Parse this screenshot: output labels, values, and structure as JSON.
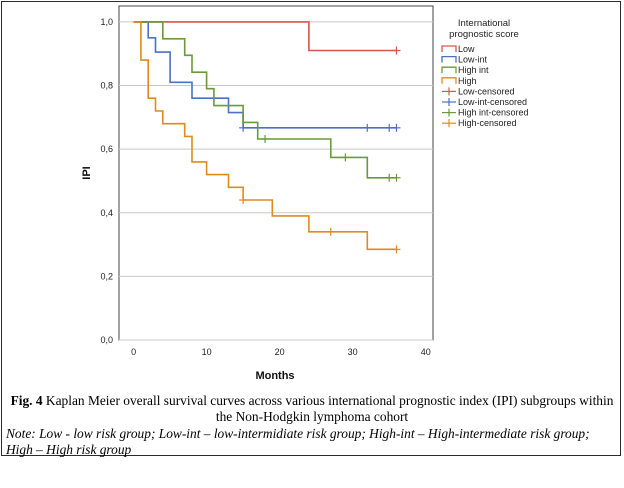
{
  "chart_data": {
    "type": "line",
    "step": true,
    "ylabel": "IPI",
    "xlabel": "Months",
    "xlim": [
      -2,
      41
    ],
    "ylim": [
      0,
      1.05
    ],
    "x_ticks": [
      "0",
      "10",
      "20",
      "30",
      "40"
    ],
    "y_ticks": [
      "0,0",
      "0,2",
      "0,4",
      "0,6",
      "0,8",
      "1,0"
    ],
    "grid": "horizontal",
    "legend_position": "right",
    "legend_title": "International prognostic score",
    "legend_entries": [
      "Low",
      "Low-int",
      "High int",
      "High",
      "Low-censored",
      "Low-int-censored",
      "High int-censored",
      "High-censored"
    ],
    "series": [
      {
        "name": "Low",
        "color": "#d9534f",
        "points": [
          [
            0,
            1.0
          ],
          [
            24,
            1.0
          ],
          [
            24,
            0.91
          ],
          [
            36,
            0.91
          ]
        ],
        "censored": [
          [
            36,
            0.91
          ]
        ]
      },
      {
        "name": "Low-int",
        "color": "#4a72c4",
        "points": [
          [
            0,
            1.0
          ],
          [
            2,
            1.0
          ],
          [
            2,
            0.95
          ],
          [
            3,
            0.95
          ],
          [
            3,
            0.905
          ],
          [
            5,
            0.905
          ],
          [
            5,
            0.81
          ],
          [
            8,
            0.81
          ],
          [
            8,
            0.76
          ],
          [
            13,
            0.76
          ],
          [
            13,
            0.715
          ],
          [
            15,
            0.715
          ],
          [
            15,
            0.667
          ],
          [
            36,
            0.667
          ]
        ],
        "censored": [
          [
            15,
            0.667
          ],
          [
            17,
            0.667
          ],
          [
            32,
            0.667
          ],
          [
            35,
            0.667
          ],
          [
            36,
            0.667
          ]
        ]
      },
      {
        "name": "High int",
        "color": "#6a9a3a",
        "points": [
          [
            0,
            1.0
          ],
          [
            4,
            1.0
          ],
          [
            4,
            0.947
          ],
          [
            7,
            0.947
          ],
          [
            7,
            0.895
          ],
          [
            8,
            0.895
          ],
          [
            8,
            0.842
          ],
          [
            10,
            0.842
          ],
          [
            10,
            0.79
          ],
          [
            11,
            0.79
          ],
          [
            11,
            0.737
          ],
          [
            15,
            0.737
          ],
          [
            15,
            0.684
          ],
          [
            17,
            0.684
          ],
          [
            17,
            0.632
          ],
          [
            27,
            0.632
          ],
          [
            27,
            0.574
          ],
          [
            32,
            0.574
          ],
          [
            32,
            0.51
          ],
          [
            36,
            0.51
          ]
        ],
        "censored": [
          [
            18,
            0.632
          ],
          [
            29,
            0.574
          ],
          [
            35,
            0.51
          ],
          [
            36,
            0.51
          ]
        ]
      },
      {
        "name": "High",
        "color": "#e08a1e",
        "points": [
          [
            0,
            1.0
          ],
          [
            1,
            1.0
          ],
          [
            1,
            0.88
          ],
          [
            2,
            0.88
          ],
          [
            2,
            0.76
          ],
          [
            3,
            0.76
          ],
          [
            3,
            0.72
          ],
          [
            4,
            0.72
          ],
          [
            4,
            0.68
          ],
          [
            7,
            0.68
          ],
          [
            7,
            0.64
          ],
          [
            8,
            0.64
          ],
          [
            8,
            0.56
          ],
          [
            10,
            0.56
          ],
          [
            10,
            0.52
          ],
          [
            13,
            0.52
          ],
          [
            13,
            0.48
          ],
          [
            15,
            0.48
          ],
          [
            15,
            0.44
          ],
          [
            19,
            0.44
          ],
          [
            19,
            0.39
          ],
          [
            24,
            0.39
          ],
          [
            24,
            0.34
          ],
          [
            32,
            0.34
          ],
          [
            32,
            0.285
          ],
          [
            36,
            0.285
          ]
        ],
        "censored": [
          [
            15,
            0.44
          ],
          [
            27,
            0.34
          ],
          [
            36,
            0.285
          ]
        ]
      }
    ]
  },
  "caption": {
    "label": "Fig. 4",
    "text": " Kaplan Meier overall survival curves across various international prognostic index (IPI) subgroups within the Non-Hodgkin lymphoma cohort"
  },
  "note": "Note: Low - low risk group; Low-int – low-intermidiate risk group; High-int – High-intermediate risk group; High – High risk group"
}
